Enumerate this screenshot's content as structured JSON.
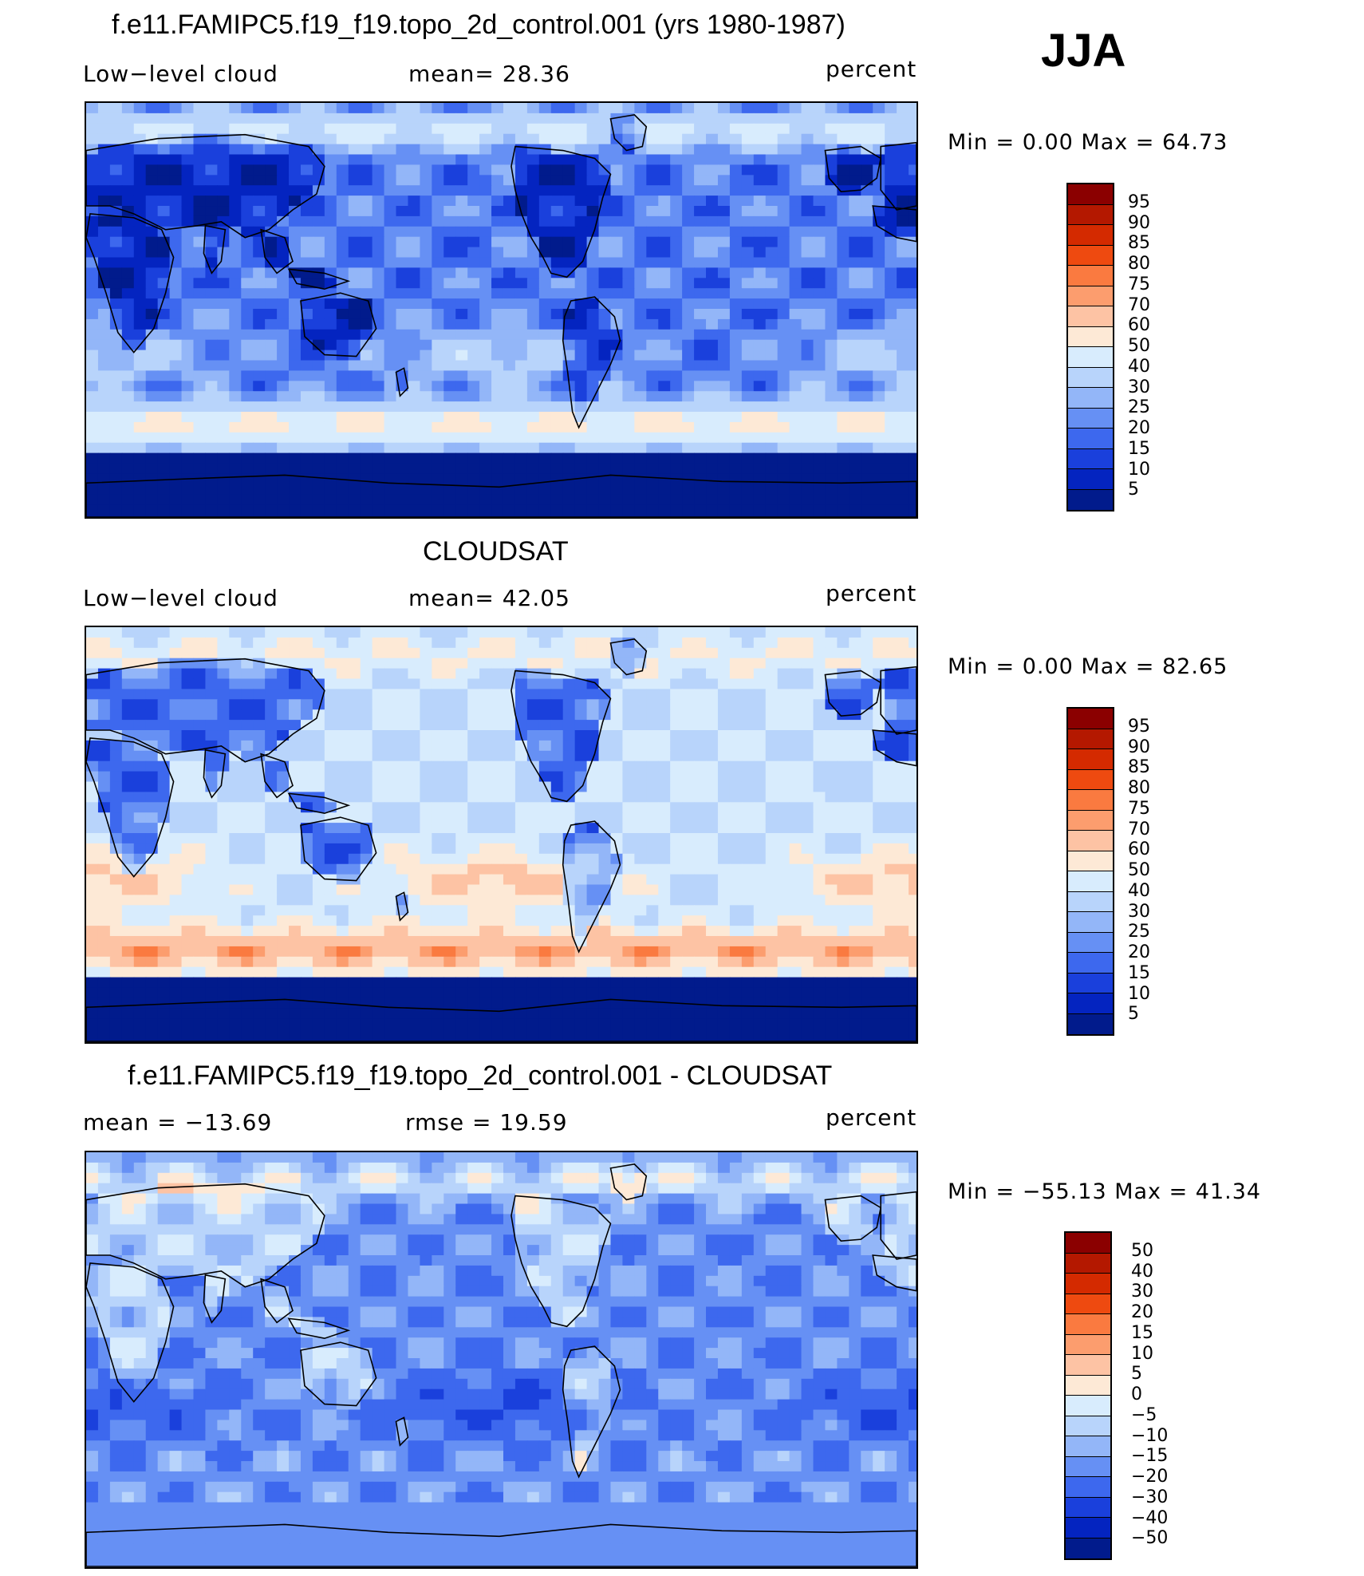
{
  "season": "JJA",
  "panels": [
    {
      "id": "model",
      "title": "f.e11.FAMIPC5.f19_f19.topo_2d_control.001 (yrs 1980-1987)",
      "left_label": "Low−level cloud",
      "center_label": "mean=   28.36",
      "units": "percent",
      "minmax": "Min =     0.00 Max =    64.73",
      "colorbar": "abs",
      "field": {
        "base": 20,
        "land": -12,
        "subtropics": 14,
        "southern_ocean": 32,
        "arctic": 22
      }
    },
    {
      "id": "obs",
      "title": "CLOUDSAT",
      "left_label": "Low−level cloud",
      "center_label": "mean=   42.05",
      "units": "percent",
      "minmax": "Min =     0.00 Max =    82.65",
      "colorbar": "abs",
      "field": {
        "base": 40,
        "land": -22,
        "subtropics": 25,
        "southern_ocean": 30,
        "arctic": 10
      }
    },
    {
      "id": "diff",
      "title": "f.e11.FAMIPC5.f19_f19.topo_2d_control.001 - CLOUDSAT",
      "left_label": "mean  =  −13.69",
      "center_label": "rmse  =    19.59",
      "units": "percent",
      "minmax": "Min =  −55.13 Max =    41.34",
      "colorbar": "diff",
      "field": {
        "base": -18,
        "land": 10,
        "subtropics": -12,
        "southern_ocean": 2,
        "arctic": 14
      }
    }
  ],
  "colorbars": {
    "abs": {
      "labels": [
        "95",
        "90",
        "85",
        "80",
        "75",
        "70",
        "60",
        "50",
        "40",
        "30",
        "25",
        "20",
        "15",
        "10",
        "5"
      ],
      "colors": [
        "#8b0000",
        "#b41800",
        "#d42a00",
        "#ee4a10",
        "#fa7a40",
        "#fc9d6e",
        "#fdc3a4",
        "#fde9d6",
        "#d8ecfd",
        "#b8d4fb",
        "#93b6f8",
        "#6690f4",
        "#3d68ee",
        "#1a40dc",
        "#0424c0",
        "#011b8c"
      ]
    },
    "diff": {
      "labels": [
        "50",
        "40",
        "30",
        "20",
        "15",
        "10",
        "5",
        "0",
        "−5",
        "−10",
        "−15",
        "−20",
        "−30",
        "−40",
        "−50"
      ],
      "colors": [
        "#8b0000",
        "#b41800",
        "#d42a00",
        "#ee4a10",
        "#fa7a40",
        "#fc9d6e",
        "#fdc3a4",
        "#fde9d6",
        "#d8ecfd",
        "#b8d4fb",
        "#93b6f8",
        "#6690f4",
        "#3d68ee",
        "#1a40dc",
        "#0424c0",
        "#011b8c"
      ]
    }
  }
}
